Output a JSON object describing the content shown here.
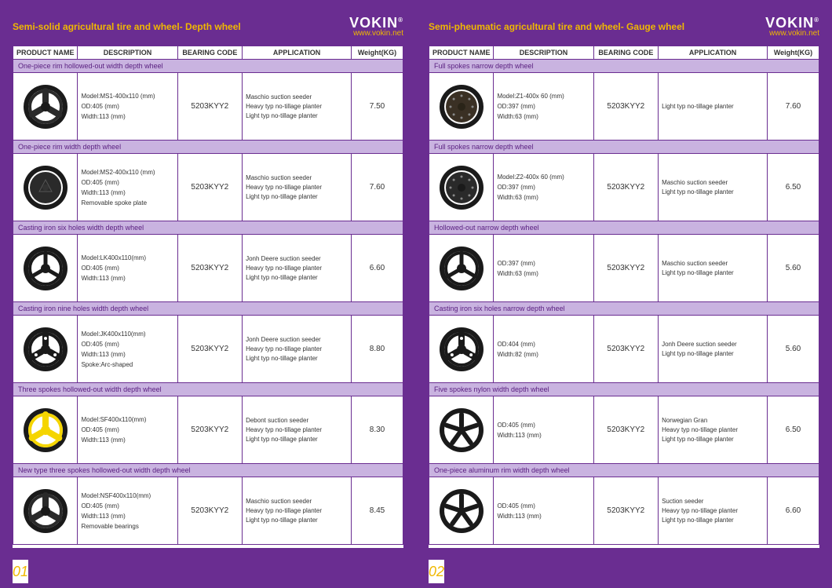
{
  "brand": {
    "name": "VOKIN",
    "reg": "®",
    "url": "www.vokin.net"
  },
  "left": {
    "title": "Semi-solid agricultural tire and wheel- Depth wheel",
    "page_num": "01",
    "columns": [
      "PRODUCT NAME",
      "DESCRIPTION",
      "BEARING CODE",
      "APPLICATION",
      "Weight(KG)"
    ],
    "rows": [
      {
        "group": "One-piece rim hollowed-out width depth wheel",
        "wheel": {
          "type": "three-spoke",
          "rim": "#1a1a1a",
          "spoke": "#2a2a2a",
          "hub": "#1a1a1a"
        },
        "desc": [
          "Model:MS1-400x110 (mm)",
          "OD:405 (mm)",
          "Width:113 (mm)"
        ],
        "bearing": "5203KYY2",
        "app": [
          "Maschio suction seeder",
          "Heavy typ no-tillage planter",
          "Light typ no-tillage planter"
        ],
        "weight": "7.50"
      },
      {
        "group": "One-piece rim width depth wheel",
        "wheel": {
          "type": "solid-plate",
          "rim": "#1a1a1a",
          "spoke": "#2a2a2a",
          "hub": "#333"
        },
        "desc": [
          "Model:MS2-400x110 (mm)",
          "OD:405 (mm)",
          "Width:113 (mm)",
          "Removable spoke plate"
        ],
        "bearing": "5203KYY2",
        "app": [
          "Maschio suction seeder",
          "Heavy typ no-tillage planter",
          "Light typ no-tillage planter"
        ],
        "weight": "7.60"
      },
      {
        "group": "Casting iron six holes width depth wheel",
        "wheel": {
          "type": "three-spoke-thin",
          "rim": "#1a1a1a",
          "spoke": "#1a1a1a",
          "hub": "#1a1a1a"
        },
        "desc": [
          "Model:LK400x110(mm)",
          "OD:405 (mm)",
          "Width:113 (mm)"
        ],
        "bearing": "5203KYY2",
        "app": [
          "Jonh Deere suction seeder",
          "Heavy typ no-tillage planter",
          "Light typ no-tillage planter"
        ],
        "weight": "6.60"
      },
      {
        "group": "Casting iron nine holes width depth wheel",
        "wheel": {
          "type": "three-spoke-holes",
          "rim": "#1a1a1a",
          "spoke": "#1a1a1a",
          "hub": "#1a1a1a"
        },
        "desc": [
          "Model:JK400x110(mm)",
          "OD:405 (mm)",
          "Width:113 (mm)",
          "Spoke:Arc-shaped"
        ],
        "bearing": "5203KYY2",
        "app": [
          "Jonh Deere suction seeder",
          "Heavy typ no-tillage planter",
          "Light typ no-tillage planter"
        ],
        "weight": "8.80"
      },
      {
        "group": "Three spokes hollowed-out width depth wheel",
        "wheel": {
          "type": "three-spoke",
          "rim": "#1a1a1a",
          "spoke": "#f5d500",
          "hub": "#f5d500"
        },
        "desc": [
          "Model:SF400x110(mm)",
          "OD:405 (mm)",
          "Width:113 (mm)"
        ],
        "bearing": "5203KYY2",
        "app": [
          "Debont suction seeder",
          "Heavy typ no-tillage planter",
          "Light typ no-tillage planter"
        ],
        "weight": "8.30"
      },
      {
        "group": "New type three spokes hollowed-out width depth wheel",
        "wheel": {
          "type": "three-spoke",
          "rim": "#1a1a1a",
          "spoke": "#2a2a2a",
          "hub": "#1a1a1a"
        },
        "desc": [
          "Model:NSF400x110(mm)",
          "OD:405 (mm)",
          "Width:113 (mm)",
          "Removable bearings"
        ],
        "bearing": "5203KYY2",
        "app": [
          "Maschio suction seeder",
          "Heavy typ no-tillage planter",
          "Light typ no-tillage planter"
        ],
        "weight": "8.45"
      }
    ]
  },
  "right": {
    "title": "Semi-pheumatic agricultural tire and wheel- Gauge wheel",
    "page_num": "02",
    "columns": [
      "PRODUCT NAME",
      "DESCRIPTION",
      "BEARING CODE",
      "APPLICATION",
      "Weight(KG)"
    ],
    "rows": [
      {
        "group": "Full spokes narrow depth wheel",
        "wheel": {
          "type": "disc-bolts",
          "rim": "#1a1a1a",
          "spoke": "#3a3024",
          "hub": "#2a2418"
        },
        "desc": [
          "Model:Z1-400x 60 (mm)",
          "OD:397 (mm)",
          "Width:63 (mm)"
        ],
        "bearing": "5203KYY2",
        "app": [
          "Light typ no-tillage planter"
        ],
        "weight": "7.60"
      },
      {
        "group": "Full spokes narrow depth wheel",
        "wheel": {
          "type": "disc-bolts",
          "rim": "#1a1a1a",
          "spoke": "#2a2a2a",
          "hub": "#1a1a1a"
        },
        "desc": [
          "Model:Z2-400x 60 (mm)",
          "OD:397 (mm)",
          "Width:63 (mm)"
        ],
        "bearing": "5203KYY2",
        "app": [
          "Maschio suction seeder",
          "Light typ no-tillage planter"
        ],
        "weight": "6.50"
      },
      {
        "group": "Hollowed-out narrow depth wheel",
        "wheel": {
          "type": "three-spoke-thin",
          "rim": "#1a1a1a",
          "spoke": "#1a1a1a",
          "hub": "#1a1a1a"
        },
        "desc": [
          "OD:397 (mm)",
          "Width:63 (mm)"
        ],
        "bearing": "5203KYY2",
        "app": [
          "Maschio suction seeder",
          "Light typ no-tillage planter"
        ],
        "weight": "5.60"
      },
      {
        "group": "Casting iron six holes narrow depth wheel",
        "wheel": {
          "type": "three-spoke-holes",
          "rim": "#1a1a1a",
          "spoke": "#1a1a1a",
          "hub": "#1a1a1a"
        },
        "desc": [
          "OD:404 (mm)",
          "Width:82 (mm)"
        ],
        "bearing": "5203KYY2",
        "app": [
          "Jonh Deere suction seeder",
          "Light typ no-tillage planter"
        ],
        "weight": "5.60"
      },
      {
        "group": "Five spokes nylon width depth wheel",
        "wheel": {
          "type": "five-spoke",
          "rim": "#1a1a1a",
          "spoke": "#1a1a1a",
          "hub": "#1a1a1a"
        },
        "desc": [
          "OD:405 (mm)",
          "Width:113 (mm)"
        ],
        "bearing": "5203KYY2",
        "app": [
          "Norwegian Gran",
          "Heavy typ no-tillage planter",
          "Light typ no-tillage planter"
        ],
        "weight": "6.50"
      },
      {
        "group": "One-piece aluminum rim width depth wheel",
        "wheel": {
          "type": "five-spoke",
          "rim": "#1a1a1a",
          "spoke": "#1a1a1a",
          "hub": "#1a1a1a"
        },
        "desc": [
          "OD:405 (mm)",
          "Width:113 (mm)"
        ],
        "bearing": "5203KYY2",
        "app": [
          "Suction seeder",
          "Heavy typ no-tillage planter",
          "Light typ no-tillage planter"
        ],
        "weight": "6.60"
      }
    ]
  }
}
